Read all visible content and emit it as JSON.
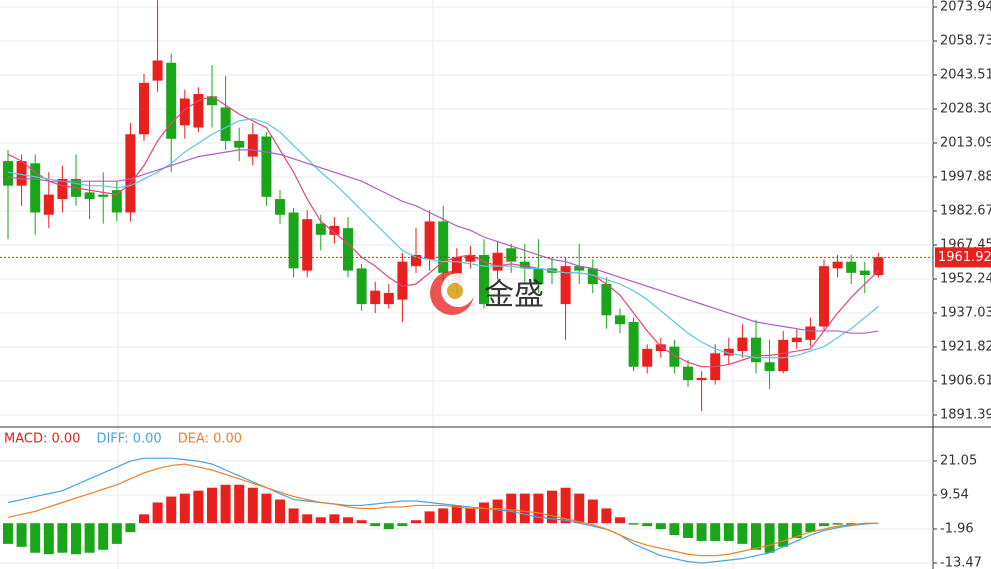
{
  "chart_data": [
    {
      "type": "candlestick",
      "ylim": [
        1886.47,
        2077.07
      ],
      "yticks": [
        2073.94,
        2058.73,
        2043.51,
        {
          "value": 2028.3,
          "label": "2028.30"
        },
        2013.09,
        1997.88,
        1982.67,
        1967.45,
        1952.24,
        1937.03,
        1921.82,
        1906.61,
        1891.39
      ],
      "grid": true,
      "up_color": "#e8201e",
      "down_color": "#1aa51a",
      "open": [
        2005,
        1994,
        2004,
        1981,
        1988,
        1997,
        1991,
        1990,
        1992,
        1982,
        2017,
        2041,
        2049,
        2021,
        2020,
        2034,
        2029,
        2014,
        2007,
        2016,
        1988,
        1982,
        1956,
        1977,
        1972,
        1975,
        1957,
        1941,
        1941,
        1943,
        1958,
        1961,
        1978,
        1950,
        1960,
        1963,
        1956,
        1966,
        1960,
        1957,
        1957,
        1941,
        1958,
        1957,
        1950,
        1936,
        1933,
        1913,
        1920,
        1922,
        1913,
        1907,
        1907,
        1918,
        1920,
        1926,
        1915,
        1911,
        1924,
        1925,
        1931,
        1957,
        1960,
        1956,
        1954
      ],
      "close": [
        1994,
        2005,
        1982,
        1990,
        1997,
        1989,
        1988,
        1989,
        1982,
        2017,
        2040,
        2050,
        2015,
        2033,
        2035,
        2030,
        2014,
        2011,
        2017,
        1989,
        1981,
        1957,
        1979,
        1972,
        1976,
        1956,
        1941,
        1947,
        1946,
        1960,
        1963,
        1978,
        1955,
        1962,
        1963,
        1941,
        1964,
        1960,
        1957,
        1950,
        1955,
        1958,
        1956,
        1950,
        1936,
        1932,
        1913,
        1921,
        1923,
        1913,
        1907,
        1908,
        1919,
        1921,
        1926,
        1915,
        1911,
        1925,
        1926,
        1931,
        1958,
        1960,
        1955,
        1954,
        1961.92
      ],
      "high": [
        2010,
        2008,
        2008,
        2000,
        2003,
        2008,
        1996,
        2000,
        1996,
        2022,
        2044,
        2077,
        2053,
        2037,
        2038,
        2048,
        2043,
        2020,
        2022,
        2018,
        1992,
        1984,
        1983,
        1981,
        1980,
        1980,
        1959,
        1951,
        1950,
        1964,
        1975,
        1983,
        1985,
        1966,
        1967,
        1970,
        1969,
        1968,
        1968,
        1970,
        1962,
        1962,
        1968,
        1961,
        1953,
        1939,
        1935,
        1923,
        1926,
        1925,
        1916,
        1911,
        1923,
        1926,
        1932,
        1934,
        1925,
        1929,
        1930,
        1935,
        1961,
        1963,
        1963,
        1960,
        1964
      ],
      "low": [
        1970,
        1985,
        1972,
        1975,
        1982,
        1985,
        1979,
        1977,
        1978,
        1978,
        2014,
        2036,
        2000,
        2015,
        2018,
        2020,
        2010,
        2005,
        2003,
        1985,
        1977,
        1953,
        1953,
        1965,
        1968,
        1953,
        1938,
        1937,
        1939,
        1933,
        1955,
        1956,
        1950,
        1945,
        1957,
        1939,
        1952,
        1955,
        1950,
        1946,
        1950,
        1925,
        1950,
        1946,
        1930,
        1928,
        1911,
        1910,
        1917,
        1910,
        1904,
        1893,
        1905,
        1914,
        1917,
        1910,
        1903,
        1910,
        1921,
        1922,
        1929,
        1953,
        1950,
        1946,
        1953
      ],
      "series": [
        {
          "color": "#e8437a",
          "values": [
            2008,
            2005,
            2000,
            1996,
            1994,
            1993,
            1992,
            1991,
            1990,
            1995,
            2003,
            2014,
            2022,
            2028,
            2032,
            2034,
            2030,
            2026,
            2023,
            2020,
            2010,
            2000,
            1988,
            1978,
            1973,
            1968,
            1962,
            1958,
            1953,
            1949,
            1950,
            1955,
            1960,
            1962,
            1963,
            1960,
            1958,
            1959,
            1958,
            1957,
            1956,
            1955,
            1955,
            1954,
            1950,
            1945,
            1937,
            1929,
            1922,
            1918,
            1915,
            1913,
            1913,
            1914,
            1916,
            1918,
            1918,
            1919,
            1920,
            1921,
            1929,
            1937,
            1944,
            1950,
            1956
          ]
        },
        {
          "color": "#5bc8e0",
          "values": [
            2000,
            1999,
            1998,
            1997,
            1996,
            1995,
            1994,
            1994,
            1993,
            1994,
            1997,
            2000,
            2004,
            2009,
            2013,
            2017,
            2020,
            2023,
            2024,
            2022,
            2018,
            2012,
            2006,
            2000,
            1995,
            1989,
            1983,
            1977,
            1971,
            1965,
            1962,
            1961,
            1960,
            1960,
            1959,
            1958,
            1958,
            1958,
            1957,
            1957,
            1956,
            1955,
            1955,
            1954,
            1952,
            1950,
            1947,
            1943,
            1938,
            1933,
            1928,
            1924,
            1921,
            1919,
            1918,
            1917,
            1917,
            1917,
            1918,
            1920,
            1922,
            1926,
            1930,
            1935,
            1940
          ]
        },
        {
          "color": "#b05fc0",
          "values": [
            1998,
            1997,
            1997,
            1996,
            1996,
            1996,
            1996,
            1996,
            1996,
            1997,
            1999,
            2001,
            2003,
            2005,
            2007,
            2008,
            2009,
            2010,
            2010,
            2009,
            2008,
            2006,
            2004,
            2002,
            2000,
            1998,
            1996,
            1993,
            1990,
            1987,
            1985,
            1982,
            1979,
            1976,
            1974,
            1971,
            1969,
            1967,
            1965,
            1963,
            1961,
            1960,
            1958,
            1957,
            1955,
            1953,
            1951,
            1949,
            1947,
            1945,
            1943,
            1941,
            1939,
            1937,
            1935,
            1933,
            1932,
            1931,
            1930,
            1929,
            1929,
            1929,
            1928,
            1928,
            1929
          ]
        }
      ],
      "current_price": 1961.92,
      "watermark": "金盛"
    },
    {
      "type": "macd",
      "ylim": [
        -15.5,
        32.21
      ],
      "yticks": [
        21.05,
        9.54,
        -1.96,
        -13.47
      ],
      "histogram": {
        "name": "MACD: 0.00",
        "color": "#e8201e",
        "down_color": "#1aa51a",
        "values": [
          -7,
          -8,
          -10,
          -10.5,
          -10,
          -10.5,
          -10,
          -9,
          -7,
          -3,
          3,
          7,
          9,
          10,
          11,
          12,
          13,
          13,
          12,
          10,
          8,
          5,
          3,
          2,
          3,
          2,
          1,
          -1,
          -2,
          -1,
          1,
          4,
          5,
          6,
          5,
          7,
          8,
          10,
          10,
          10,
          11,
          12,
          10,
          8,
          5,
          2,
          -0.5,
          -1,
          -2,
          -4,
          -5,
          -6,
          -6,
          -6,
          -7,
          -9,
          -10,
          -8,
          -5,
          -3,
          -1,
          -0.5,
          -0.5,
          -0.3,
          0
        ]
      },
      "series": [
        {
          "name": "DIFF: 0.00",
          "color": "#4aa3e0",
          "values": [
            7,
            8,
            9,
            10,
            11,
            13,
            15,
            17,
            19,
            21,
            22,
            22,
            22,
            21.5,
            21,
            20,
            18,
            16,
            14,
            12,
            10,
            8,
            7.5,
            7,
            6.5,
            6,
            6,
            6.5,
            7,
            7.5,
            7.5,
            7,
            6.5,
            6,
            5.5,
            5,
            4.5,
            4,
            3,
            2,
            1.5,
            1,
            0,
            -1,
            -2,
            -4,
            -7,
            -9,
            -11,
            -12,
            -13,
            -13.5,
            -13,
            -12.5,
            -12,
            -11,
            -10,
            -8,
            -6,
            -4,
            -2.5,
            -1.5,
            -0.8,
            -0.3,
            0
          ]
        },
        {
          "name": "DEA: 0.00",
          "color": "#f07f2a",
          "values": [
            2,
            3,
            4,
            5.5,
            7,
            8.5,
            10,
            11.5,
            13,
            15,
            17,
            18.5,
            19.5,
            20,
            19,
            18,
            16.5,
            15,
            13.5,
            12,
            10.5,
            9,
            8,
            7,
            6.5,
            5.5,
            5,
            5,
            5.5,
            5.5,
            6,
            6,
            6,
            5.5,
            5,
            5,
            5,
            4.5,
            4,
            3.5,
            2.5,
            1.5,
            0.5,
            -0.5,
            -2,
            -4,
            -6,
            -7.5,
            -8.5,
            -9.5,
            -10.5,
            -11,
            -11,
            -10.5,
            -9.5,
            -8.5,
            -7.5,
            -6,
            -4.5,
            -3,
            -2,
            -1,
            -0.5,
            0,
            0
          ]
        }
      ]
    }
  ]
}
